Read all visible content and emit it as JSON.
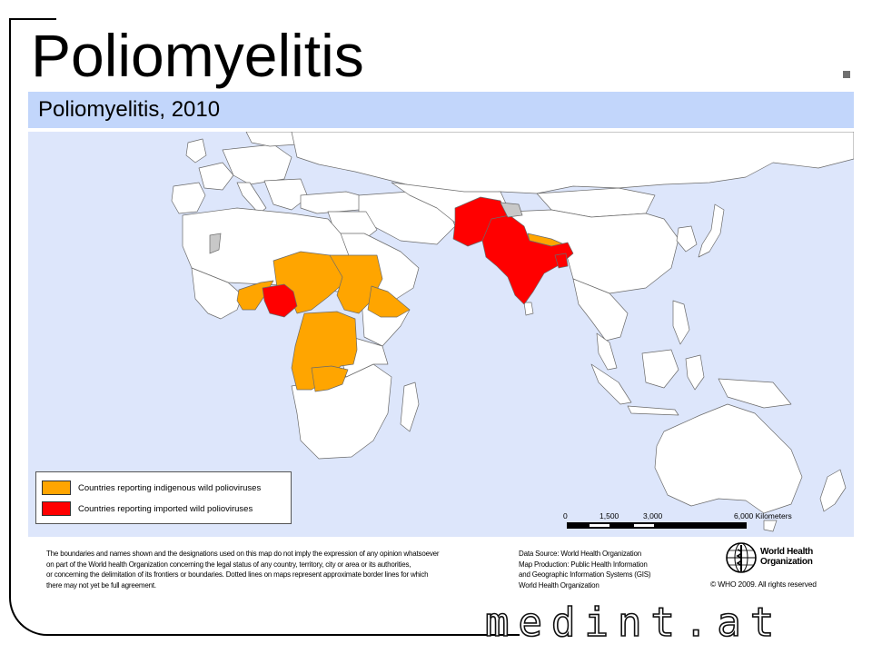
{
  "slide": {
    "title": "Poliomyelitis",
    "subtitle": "Poliomyelitis, 2010"
  },
  "legend": {
    "items": [
      {
        "label": "Countries reporting indigenous wild polioviruses",
        "color": "#ffa500"
      },
      {
        "label": "Countries reporting imported  wild polioviruses",
        "color": "#ff0000"
      }
    ]
  },
  "scale": {
    "ticks": [
      "0",
      "1,500",
      "3,000",
      "6,000 Kilometers"
    ]
  },
  "disclaimer": {
    "lines": [
      "The boundaries and names shown and the designations used on this map do not imply the expression of any opinion whatsoever",
      "on part of the World health Organization concerning the legal status of any country, territory, city or area or its authorities,",
      "or concerning the delimitation of its frontiers or boundaries. Dotted lines on maps represent approximate border lines for which",
      "there may not yet be full agreement."
    ]
  },
  "data_source": {
    "lines": [
      "Data Source: World Health Organization",
      "Map Production: Public Health Information",
      "and Geographic Information Systems (GIS)",
      "World Health Organization"
    ]
  },
  "who": {
    "name_line1": "World Health",
    "name_line2": "Organization",
    "copyright": "© WHO 2009. All rights reserved",
    "icon": "who-emblem-icon"
  },
  "brand": {
    "text": "medint.at"
  },
  "colors": {
    "ocean": "#dde6fb",
    "land": "#ffffff",
    "indigenous": "#ffa500",
    "imported": "#ff0000",
    "no_data": "#c8c8c8",
    "subtitle_bar": "#c2d6fb"
  }
}
